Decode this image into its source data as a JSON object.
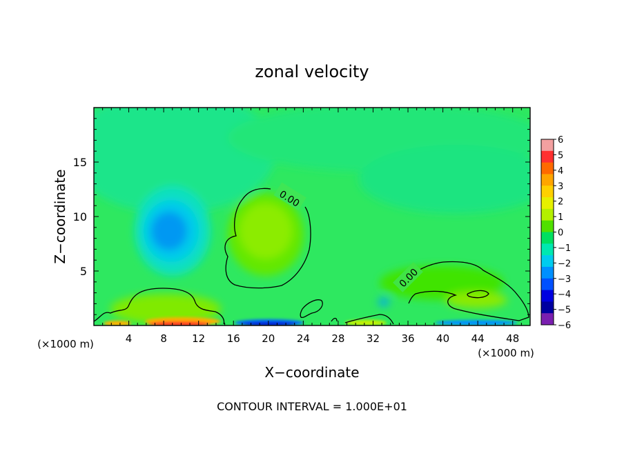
{
  "chart_data": {
    "type": "heatmap",
    "title": "zonal velocity",
    "xlabel": "X−coordinate",
    "ylabel": "Z−coordinate",
    "x_unit_left": "(×1000 m)",
    "x_unit_right": "(×1000 m)",
    "xlim": [
      0,
      50
    ],
    "ylim": [
      0,
      20
    ],
    "x_ticks": [
      "4",
      "8",
      "12",
      "16",
      "20",
      "24",
      "28",
      "32",
      "36",
      "40",
      "44",
      "48"
    ],
    "y_ticks": [
      "5",
      "10",
      "15"
    ],
    "contour_labels": [
      "0.00",
      "0.00"
    ],
    "colorbar": {
      "labels": [
        "6",
        "5",
        "4",
        "3",
        "2",
        "1",
        "0",
        "−1",
        "−2",
        "−3",
        "−4",
        "−5",
        "−6"
      ],
      "colors": [
        "#f3a0a0",
        "#ff3030",
        "#ff6a00",
        "#ffa500",
        "#ffd000",
        "#e6f000",
        "#b4f000",
        "#50e000",
        "#00e060",
        "#00e8b0",
        "#00ccee",
        "#0090ff",
        "#0050ff",
        "#0000e0",
        "#0000a0",
        "#7a1fb0"
      ]
    },
    "footer": "CONTOUR INTERVAL = 1.000E+01"
  }
}
